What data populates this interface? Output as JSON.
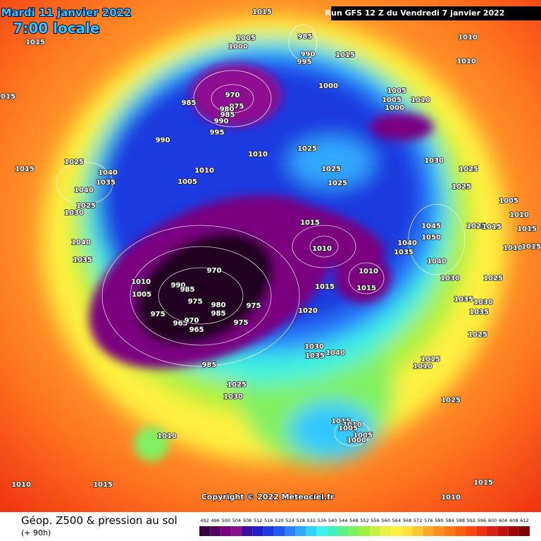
{
  "header": {
    "date": "Mardi 11 janvier 2022",
    "time": "7:00 locale",
    "run": "Run GFS 12 Z du Vendredi 7 janvier 2022"
  },
  "isobar_labels": [
    "1015",
    "1015",
    "1005",
    "1000",
    "985",
    "990",
    "995",
    "1015",
    "1010",
    "1010",
    "1015",
    "970",
    "975",
    "985",
    "980",
    "985",
    "990",
    "995",
    "1000",
    "1005",
    "1005",
    "1000",
    "1010",
    "990",
    "1010",
    "1025",
    "1015",
    "1025",
    "1040",
    "1035",
    "1040",
    "1010",
    "1005",
    "1025",
    "1025",
    "1030",
    "1025",
    "1025",
    "1025",
    "1030",
    "1015",
    "1005",
    "1010",
    "1045",
    "1025",
    "1015",
    "1015",
    "1050",
    "1040",
    "1010",
    "1035",
    "1040",
    "1010",
    "1015",
    "1035",
    "970",
    "1040",
    "1010",
    "1030",
    "1025",
    "1010",
    "990",
    "985",
    "1015",
    "1015",
    "1005",
    "975",
    "1035",
    "1030",
    "980",
    "985",
    "975",
    "1020",
    "1035",
    "975",
    "965",
    "970",
    "975",
    "965",
    "1025",
    "1030",
    "1040",
    "1035",
    "985",
    "1015",
    "1010",
    "1025",
    "1030",
    "1025",
    "1010",
    "1015",
    "1010",
    "1005",
    "1005",
    "1000",
    "1010",
    "1015",
    "1015",
    "1010"
  ],
  "copyright": "Copyright © 2022 Meteociel.fr",
  "legend": {
    "title": "Géop. Z500 & pression au sol",
    "lead": "(+ 90h)",
    "scale": [
      492,
      496,
      500,
      504,
      508,
      512,
      516,
      520,
      524,
      528,
      532,
      536,
      540,
      544,
      548,
      552,
      556,
      560,
      564,
      568,
      572,
      576,
      580,
      584,
      588,
      592,
      596,
      600,
      604,
      608,
      612
    ],
    "colors": [
      "#3a0040",
      "#5a0060",
      "#7a0080",
      "#8e1090",
      "#3b0fa0",
      "#2020c8",
      "#1f3ae0",
      "#1e5af0",
      "#2a80ff",
      "#30a8ff",
      "#30d0ff",
      "#40f0f0",
      "#40f0c0",
      "#60f080",
      "#80f060",
      "#a0f040",
      "#c8f040",
      "#e8f040",
      "#fff040",
      "#ffe040",
      "#ffc830",
      "#ffa828",
      "#ff9020",
      "#ff7818",
      "#ff6010",
      "#ff4810",
      "#f03010",
      "#d82010",
      "#c01010",
      "#a00808",
      "#800000"
    ]
  }
}
